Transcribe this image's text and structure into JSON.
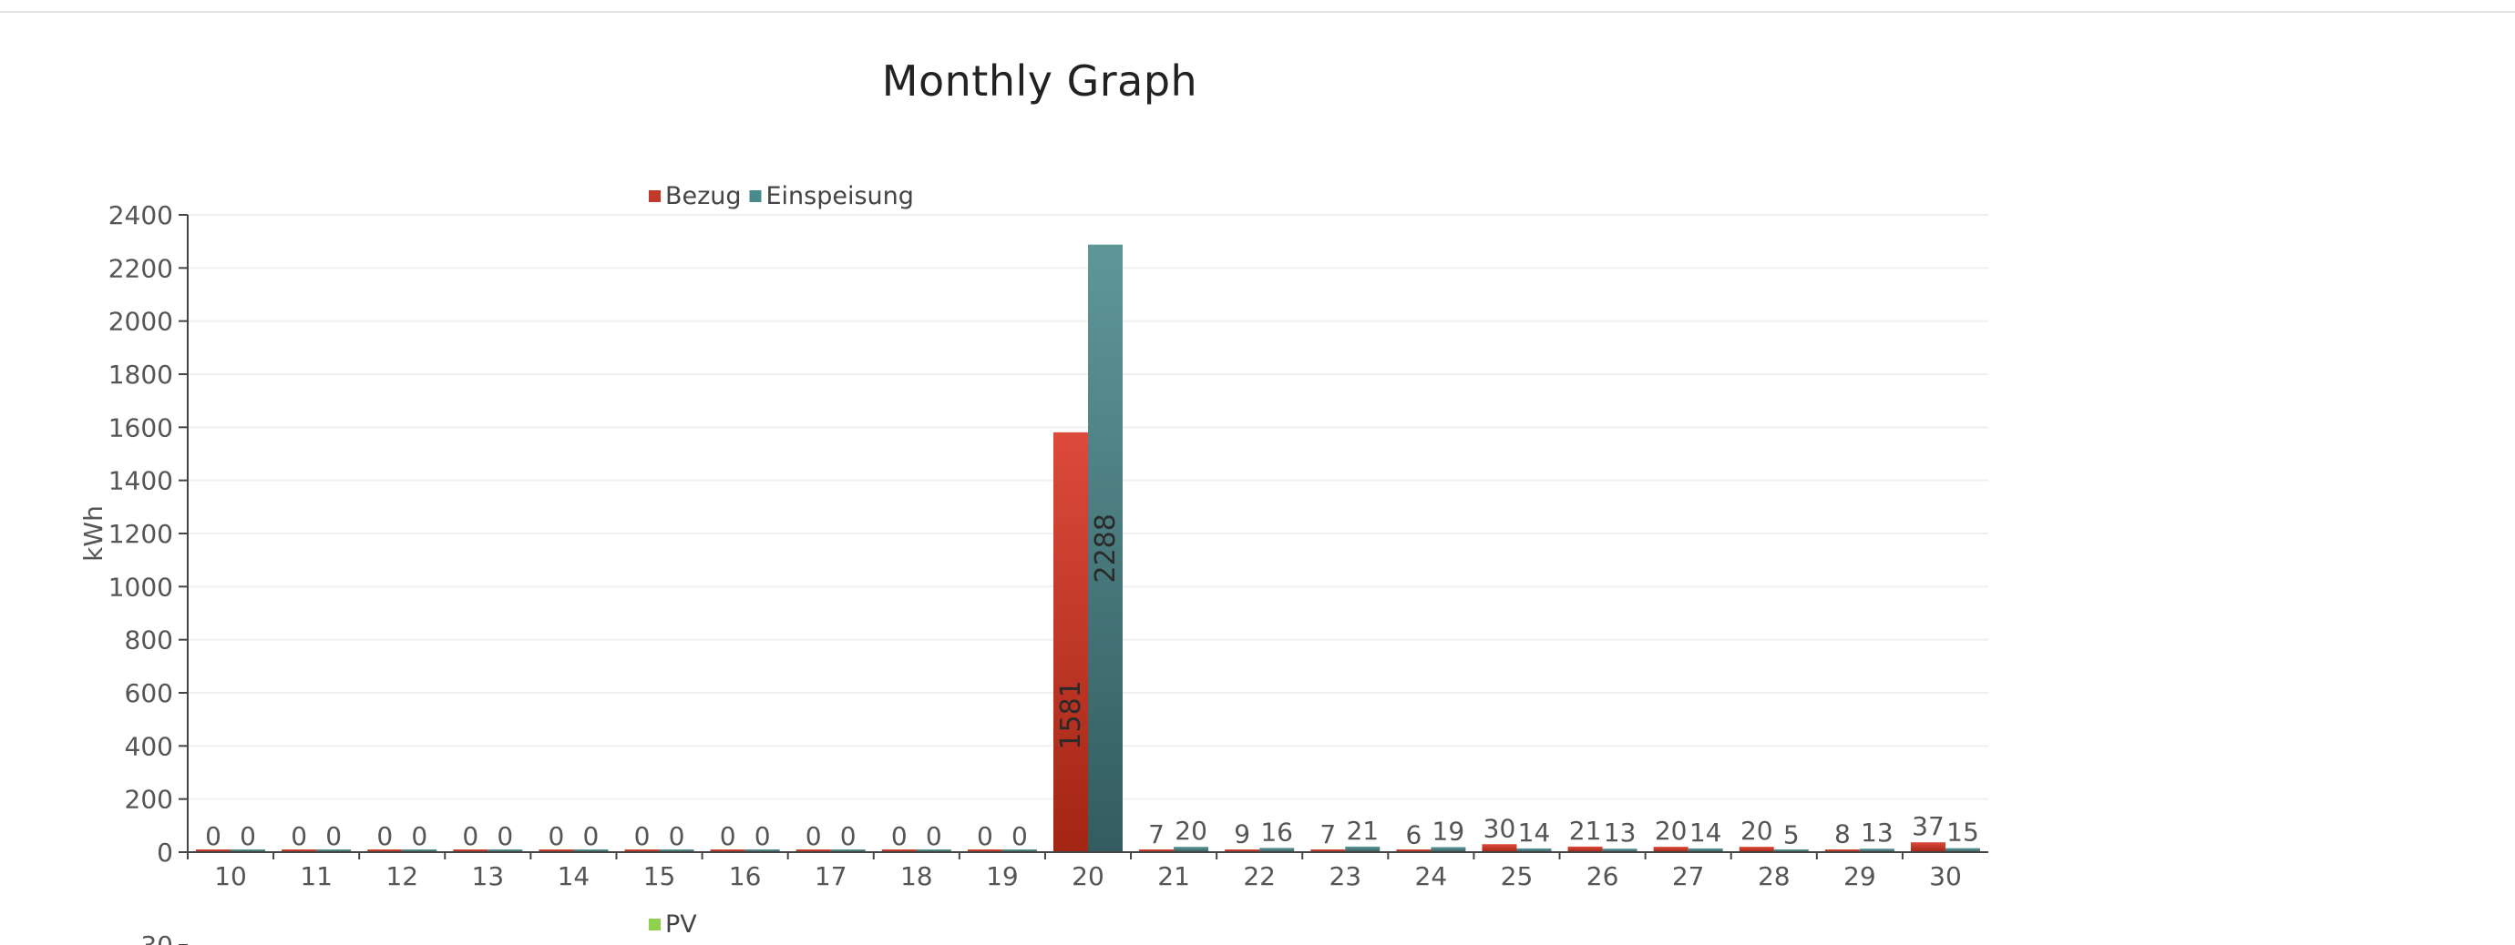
{
  "page": {
    "title": "Monthly Graph"
  },
  "chart_data": [
    {
      "type": "bar",
      "title": "Monthly Graph",
      "ylabel": "kWh",
      "xlabel": "",
      "ylim": [
        0,
        2400
      ],
      "yticks": [
        0,
        200,
        400,
        600,
        800,
        1000,
        1200,
        1400,
        1600,
        1800,
        2000,
        2200,
        2400
      ],
      "grid": true,
      "legend_position": "top",
      "categories": [
        "10",
        "11",
        "12",
        "13",
        "14",
        "15",
        "16",
        "17",
        "18",
        "19",
        "20",
        "21",
        "22",
        "23",
        "24",
        "25",
        "26",
        "27",
        "28",
        "29",
        "30"
      ],
      "series": [
        {
          "name": "Bezug",
          "color": "#c0392b",
          "values": [
            0,
            0,
            0,
            0,
            0,
            0,
            0,
            0,
            0,
            0,
            1581,
            7,
            9,
            7,
            6,
            30,
            21,
            20,
            20,
            8,
            37
          ]
        },
        {
          "name": "Einspeisung",
          "color": "#4a8a8c",
          "values": [
            0,
            0,
            0,
            0,
            0,
            0,
            0,
            0,
            0,
            0,
            2288,
            20,
            16,
            21,
            19,
            14,
            13,
            14,
            5,
            13,
            15
          ]
        }
      ]
    },
    {
      "type": "bar",
      "ylabel": "",
      "ytick_visible": "30",
      "legend_position": "top",
      "series": [
        {
          "name": "PV",
          "color": "#8fd14f",
          "values": []
        }
      ]
    }
  ]
}
